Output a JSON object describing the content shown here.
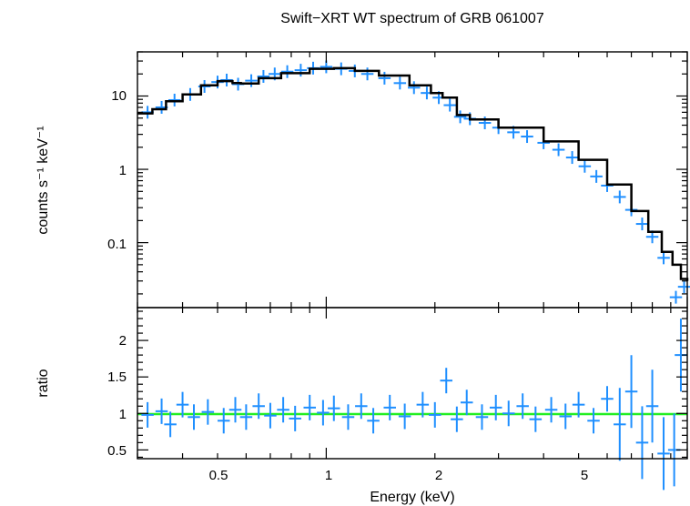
{
  "chart_data": [
    {
      "type": "scatter",
      "panel": "spectrum",
      "title": "Swift−XRT WT spectrum of GRB 061007",
      "xlabel": "Energy (keV)",
      "ylabel": "counts s⁻¹ keV⁻¹",
      "xscale": "log",
      "yscale": "log",
      "xlim": [
        0.3,
        10
      ],
      "ylim": [
        0.013,
        40
      ],
      "x_tick_labels": [
        "0.5",
        "1",
        "2",
        "5"
      ],
      "y_tick_labels": [
        "10",
        "1",
        "0.1"
      ],
      "grid": false,
      "colors": {
        "data": "#1f8fff",
        "model": "#000000"
      },
      "series": [
        {
          "name": "",
          "style": "crosses",
          "points": [
            [
              0.32,
              6.0
            ],
            [
              0.35,
              7.0
            ],
            [
              0.38,
              8.8
            ],
            [
              0.42,
              10.5
            ],
            [
              0.46,
              13.5
            ],
            [
              0.5,
              15.5
            ],
            [
              0.53,
              16.5
            ],
            [
              0.57,
              14.5
            ],
            [
              0.62,
              16.2
            ],
            [
              0.67,
              18.5
            ],
            [
              0.72,
              20.0
            ],
            [
              0.78,
              21.5
            ],
            [
              0.85,
              22.5
            ],
            [
              0.92,
              24.0
            ],
            [
              1.0,
              25.0
            ],
            [
              1.1,
              23.5
            ],
            [
              1.2,
              22.0
            ],
            [
              1.3,
              20.0
            ],
            [
              1.45,
              17.5
            ],
            [
              1.6,
              15.0
            ],
            [
              1.75,
              13.0
            ],
            [
              1.9,
              11.0
            ],
            [
              2.05,
              9.5
            ],
            [
              2.2,
              7.5
            ],
            [
              2.35,
              5.2
            ],
            [
              2.5,
              4.9
            ],
            [
              2.75,
              4.3
            ],
            [
              3.0,
              3.7
            ],
            [
              3.3,
              3.2
            ],
            [
              3.6,
              2.8
            ],
            [
              4.0,
              2.3
            ],
            [
              4.4,
              1.85
            ],
            [
              4.8,
              1.45
            ],
            [
              5.2,
              1.1
            ],
            [
              5.6,
              0.8
            ],
            [
              6.0,
              0.6
            ],
            [
              6.5,
              0.42
            ],
            [
              7.0,
              0.28
            ],
            [
              7.5,
              0.18
            ],
            [
              8.0,
              0.12
            ],
            [
              8.6,
              0.062
            ],
            [
              9.3,
              0.018
            ],
            [
              9.8,
              0.025
            ]
          ]
        },
        {
          "name": "",
          "style": "line",
          "points": [
            [
              0.3,
              5.8
            ],
            [
              0.33,
              6.6
            ],
            [
              0.36,
              8.5
            ],
            [
              0.4,
              10.5
            ],
            [
              0.45,
              14.0
            ],
            [
              0.5,
              16.0
            ],
            [
              0.55,
              15.0
            ],
            [
              0.58,
              14.8
            ],
            [
              0.65,
              17.5
            ],
            [
              0.75,
              20.5
            ],
            [
              0.9,
              23.5
            ],
            [
              1.05,
              24.0
            ],
            [
              1.2,
              22.0
            ],
            [
              1.4,
              19.0
            ],
            [
              1.7,
              14.0
            ],
            [
              1.95,
              11.0
            ],
            [
              2.1,
              9.5
            ],
            [
              2.3,
              5.5
            ],
            [
              2.5,
              4.8
            ],
            [
              3.0,
              3.7
            ],
            [
              4.0,
              2.4
            ],
            [
              5.0,
              1.35
            ],
            [
              6.0,
              0.62
            ],
            [
              7.0,
              0.27
            ],
            [
              7.8,
              0.14
            ],
            [
              8.5,
              0.075
            ],
            [
              9.1,
              0.05
            ],
            [
              9.6,
              0.032
            ],
            [
              10.0,
              0.03
            ]
          ]
        }
      ]
    },
    {
      "type": "scatter",
      "panel": "ratio",
      "title": "",
      "xlabel": "Energy (keV)",
      "ylabel": "ratio",
      "xscale": "log",
      "yscale": "linear",
      "xlim": [
        0.3,
        10
      ],
      "ylim": [
        0.38,
        2.45
      ],
      "x_tick_labels": [
        "0.5",
        "1",
        "2",
        "5"
      ],
      "y_tick_labels": [
        "0.5",
        "1",
        "1.5",
        "2"
      ],
      "grid": false,
      "reference_line": 1,
      "colors": {
        "data": "#1f8fff",
        "reference": "#22ee22"
      },
      "series": [
        {
          "name": "",
          "style": "crosses",
          "points": [
            [
              0.32,
              0.98
            ],
            [
              0.35,
              1.03
            ],
            [
              0.37,
              0.85
            ],
            [
              0.4,
              1.12
            ],
            [
              0.43,
              0.95
            ],
            [
              0.47,
              1.02
            ],
            [
              0.52,
              0.9
            ],
            [
              0.56,
              1.05
            ],
            [
              0.6,
              0.95
            ],
            [
              0.65,
              1.1
            ],
            [
              0.7,
              0.97
            ],
            [
              0.76,
              1.05
            ],
            [
              0.82,
              0.93
            ],
            [
              0.9,
              1.08
            ],
            [
              0.98,
              1.01
            ],
            [
              1.05,
              1.07
            ],
            [
              1.15,
              0.95
            ],
            [
              1.25,
              1.1
            ],
            [
              1.35,
              0.9
            ],
            [
              1.5,
              1.08
            ],
            [
              1.65,
              0.96
            ],
            [
              1.85,
              1.12
            ],
            [
              2.0,
              0.98
            ],
            [
              2.15,
              1.45
            ],
            [
              2.3,
              0.92
            ],
            [
              2.45,
              1.15
            ],
            [
              2.7,
              0.95
            ],
            [
              2.95,
              1.08
            ],
            [
              3.2,
              1.0
            ],
            [
              3.5,
              1.1
            ],
            [
              3.8,
              0.92
            ],
            [
              4.2,
              1.05
            ],
            [
              4.6,
              0.96
            ],
            [
              5.0,
              1.12
            ],
            [
              5.5,
              0.9
            ],
            [
              6.0,
              1.2
            ],
            [
              6.5,
              0.85
            ],
            [
              7.0,
              1.3
            ],
            [
              7.5,
              0.6
            ],
            [
              8.0,
              1.1
            ],
            [
              8.6,
              0.45
            ],
            [
              9.2,
              0.5
            ],
            [
              9.6,
              1.8
            ]
          ]
        }
      ]
    }
  ]
}
